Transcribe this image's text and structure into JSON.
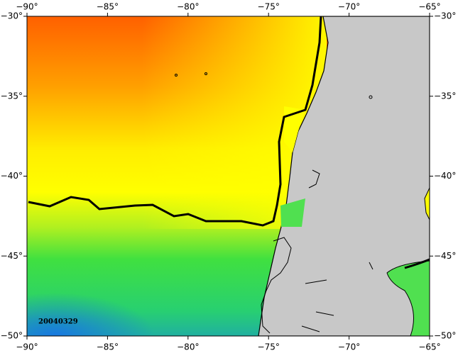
{
  "map": {
    "lon_ticks": [
      {
        "value": -90,
        "label": "−90°"
      },
      {
        "value": -85,
        "label": "−85°"
      },
      {
        "value": -80,
        "label": "−80°"
      },
      {
        "value": -75,
        "label": "−75°"
      },
      {
        "value": -70,
        "label": "−70°"
      },
      {
        "value": -65,
        "label": "−65°"
      }
    ],
    "lat_ticks": [
      {
        "value": -30,
        "label": "−30°"
      },
      {
        "value": -35,
        "label": "−35°"
      },
      {
        "value": -40,
        "label": "−40°"
      },
      {
        "value": -45,
        "label": "−45°"
      },
      {
        "value": -50,
        "label": "−50°"
      }
    ],
    "lon_range": [
      -90,
      -65
    ],
    "lat_range": [
      -50,
      -30
    ],
    "date": "20040329"
  }
}
